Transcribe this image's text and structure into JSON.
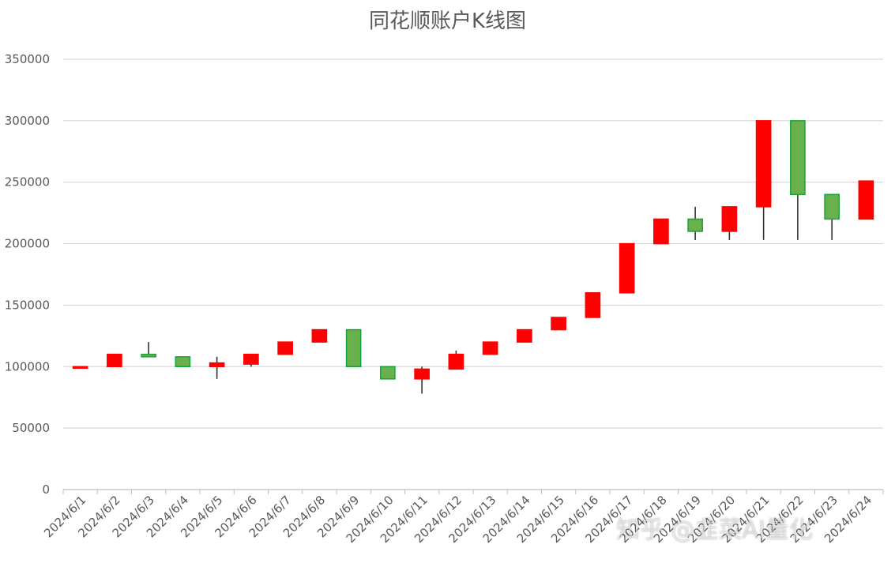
{
  "chart_data": {
    "type": "candlestick",
    "title": "同花顺账户K线图",
    "xlabel": "",
    "ylabel": "",
    "ylim": [
      0,
      350000
    ],
    "yticks": [
      0,
      50000,
      100000,
      150000,
      200000,
      250000,
      300000,
      350000
    ],
    "grid": true,
    "colors": {
      "up": "#ff0000",
      "down": "#6ab04c",
      "down_border": "#1aa33a",
      "wick": "#333333"
    },
    "categories": [
      "2024/6/1",
      "2024/6/2",
      "2024/6/3",
      "2024/6/4",
      "2024/6/5",
      "2024/6/6",
      "2024/6/7",
      "2024/6/8",
      "2024/6/9",
      "2024/6/10",
      "2024/6/11",
      "2024/6/12",
      "2024/6/13",
      "2024/6/14",
      "2024/6/15",
      "2024/6/16",
      "2024/6/17",
      "2024/6/18",
      "2024/6/19",
      "2024/6/20",
      "2024/6/21",
      "2024/6/22",
      "2024/6/23",
      "2024/6/24"
    ],
    "open": [
      100000,
      100000,
      110000,
      108000,
      100000,
      102000,
      110000,
      120000,
      130000,
      100000,
      90000,
      98000,
      110000,
      120000,
      130000,
      140000,
      160000,
      200000,
      220000,
      210000,
      230000,
      300000,
      240000,
      220000
    ],
    "close": [
      100000,
      110000,
      108000,
      100000,
      103000,
      110000,
      120000,
      130000,
      100000,
      90000,
      98000,
      110000,
      120000,
      130000,
      140000,
      160000,
      200000,
      220000,
      210000,
      230000,
      300000,
      240000,
      220000,
      251000
    ],
    "high": [
      100000,
      110000,
      120000,
      108000,
      108000,
      110000,
      120000,
      130000,
      130000,
      100000,
      100000,
      113000,
      120000,
      130000,
      140000,
      160000,
      200000,
      220000,
      230000,
      230000,
      300000,
      300000,
      240000,
      251000
    ],
    "low": [
      100000,
      100000,
      108000,
      100000,
      90000,
      100000,
      110000,
      120000,
      100000,
      90000,
      78000,
      98000,
      110000,
      120000,
      130000,
      140000,
      160000,
      200000,
      203000,
      203000,
      203000,
      203000,
      203000,
      220000
    ]
  },
  "watermark": "知乎 @韭菜AI量化"
}
